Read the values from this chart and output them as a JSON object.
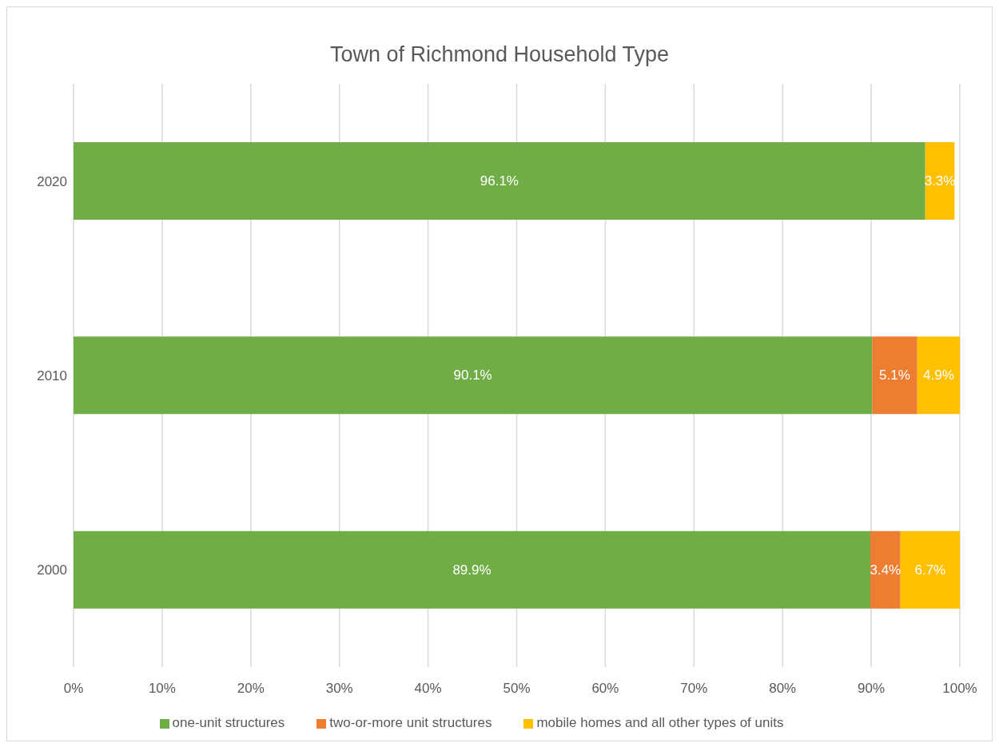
{
  "chart_data": {
    "type": "bar",
    "orientation": "horizontal",
    "stacked": true,
    "title": "Town of Richmond Household Type",
    "categories": [
      "2020",
      "2010",
      "2000"
    ],
    "series": [
      {
        "name": "one-unit structures",
        "color": "#70ad47",
        "values": [
          96.1,
          90.1,
          89.9
        ],
        "value_labels": [
          "96.1%",
          "90.1%",
          "89.9%"
        ]
      },
      {
        "name": "two-or-more unit structures",
        "color": "#ed7d31",
        "values": [
          null,
          5.1,
          3.4
        ],
        "value_labels": [
          null,
          "5.1%",
          "3.4%"
        ]
      },
      {
        "name": "mobile homes and all other types of units",
        "color": "#ffc000",
        "values": [
          3.3,
          4.9,
          6.7
        ],
        "value_labels": [
          "3.3%",
          "4.9%",
          "6.7%"
        ]
      }
    ],
    "xlim": [
      0,
      100
    ],
    "xticks": [
      {
        "value": 0,
        "label": "0%"
      },
      {
        "value": 10,
        "label": "10%"
      },
      {
        "value": 20,
        "label": "20%"
      },
      {
        "value": 30,
        "label": "30%"
      },
      {
        "value": 40,
        "label": "40%"
      },
      {
        "value": 50,
        "label": "50%"
      },
      {
        "value": 60,
        "label": "60%"
      },
      {
        "value": 70,
        "label": "70%"
      },
      {
        "value": 80,
        "label": "80%"
      },
      {
        "value": 90,
        "label": "90%"
      },
      {
        "value": 100,
        "label": "100%"
      }
    ],
    "grid": "x",
    "legend": "bottom"
  }
}
